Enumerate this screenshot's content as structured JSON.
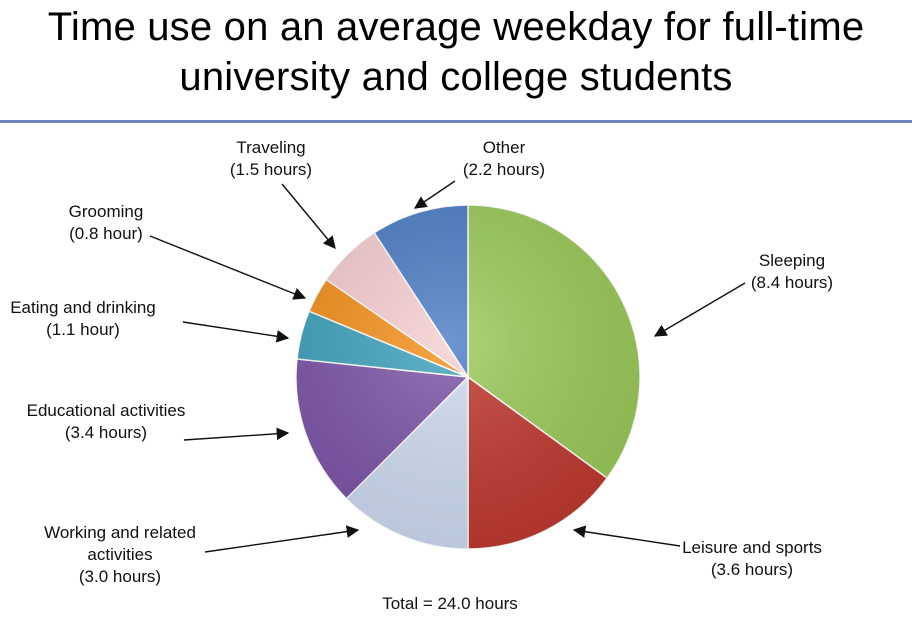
{
  "title_lines": [
    "Time use on an average weekday for full-time",
    "university and college students"
  ],
  "total_label": "Total = 24.0 hours",
  "chart_data": {
    "type": "pie",
    "title": "Time use on an average weekday for full-time university and college students",
    "start_angle_deg": 0,
    "direction": "clockwise",
    "slices": [
      {
        "label": "Sleeping",
        "value_label": "(8.4 hours)",
        "value": 8.4,
        "color": "#9ccb59"
      },
      {
        "label": "Leisure and sports",
        "value_label": "(3.6 hours)",
        "value": 3.6,
        "color": "#c0392f"
      },
      {
        "label": "Working and related activities",
        "value_label": "(3.0 hours)",
        "value": 3.0,
        "color": "#cfdcf2"
      },
      {
        "label": "Educational activities",
        "value_label": "(3.4 hours)",
        "value": 3.4,
        "color": "#7d55a8"
      },
      {
        "label": "Eating and drinking",
        "value_label": "(1.1 hour)",
        "value": 1.1,
        "color": "#3fa3bd"
      },
      {
        "label": "Grooming",
        "value_label": "(0.8 hour)",
        "value": 0.8,
        "color": "#f6921e"
      },
      {
        "label": "Traveling",
        "value_label": "(1.5 hours)",
        "value": 1.5,
        "color": "#f7cfd2"
      },
      {
        "label": "Other",
        "value_label": "(2.2 hours)",
        "value": 2.2,
        "color": "#4e7ec6"
      }
    ]
  }
}
